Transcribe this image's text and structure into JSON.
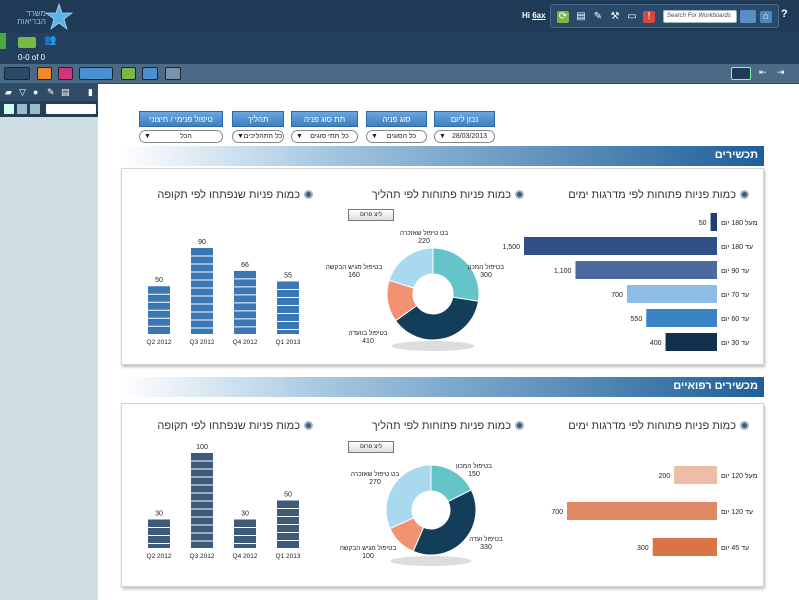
{
  "header": {
    "logo_line1": "משרד",
    "logo_line2": "הבריאות",
    "greeting": "Hi",
    "user": "6ax",
    "search_placeholder": "Search For Workboards",
    "help": "?"
  },
  "bar2": {
    "counter": "0-0 of 0"
  },
  "colors": {
    "blue_dark": "#1e3f6b",
    "blue_mid": "#4b6aa0",
    "blue_light": "#8dbde5",
    "blue_sky": "#3a84c6",
    "navy": "#12304f",
    "orange_light": "#efbda5",
    "orange": "#e08a65",
    "orange_dark": "#d97446",
    "teal": "#65c4c8",
    "pale_blue": "#a9d9ef",
    "salmon": "#f39273",
    "donut_navy": "#123e5c"
  },
  "filters": [
    {
      "label": "נכון ליום",
      "value": "28/03/2013"
    },
    {
      "label": "סוג פניה",
      "value": "כל הסוגים"
    },
    {
      "label": "תת סוג פניה",
      "value": "כל תתי סוגים"
    },
    {
      "label": "תהליך",
      "value": "כל התהליכים"
    },
    {
      "label": "טיפול פנימי / חיצוני",
      "value": "הכל"
    }
  ],
  "sections": [
    {
      "title": "תכשירים",
      "bar_title": "כמות פניות פתוחות לפי מדרגות ימים",
      "donut_title": "כמות פניות פתוחות לפי תהליך",
      "column_title": "כמות פניות שנפתחו לפי תקופה",
      "legend_label": "ליצ פרוס"
    },
    {
      "title": "מכשירים רפואיים",
      "bar_title": "כמות פניות פתוחות לפי מדרגות ימים",
      "donut_title": "כמות פניות פתוחות לפי תהליך",
      "column_title": "כמות פניות שנפתחו לפי תקופה",
      "legend_label": "ליצ פרוס"
    }
  ],
  "chart_data": [
    {
      "type": "bar",
      "orientation": "horizontal",
      "categories": [
        "מעל 180 יום",
        "עד 180 יום",
        "עד 90 יום",
        "עד 70 יום",
        "עד 60 יום",
        "עד 30 יום"
      ],
      "values": [
        50,
        1500,
        1100,
        700,
        550,
        400
      ],
      "value_labels": [
        "50",
        "1,500",
        "1,100",
        "700",
        "550",
        "400"
      ],
      "colors": [
        "#1e3f6b",
        "#2f4f86",
        "#4b6aa0",
        "#8dbde5",
        "#3a84c6",
        "#12304f"
      ],
      "xlim": [
        0,
        1500
      ]
    },
    {
      "type": "pie",
      "donut": true,
      "labels": [
        "בטיפול מומחה",
        "בטיפול בוועדה",
        "בטיפול מגיש הבקשה",
        "בטיפול מנהל הבקשה"
      ],
      "labels_display": [
        "בטיפול המכון",
        "בטיפול בוועדה",
        "בטיפול מגיש הבקשה",
        "בט טיפול שאזכרה"
      ],
      "values": [
        300,
        410,
        160,
        220
      ],
      "colors": [
        "#65c4c8",
        "#123e5c",
        "#f39273",
        "#a9d9ef"
      ]
    },
    {
      "type": "bar",
      "categories": [
        "Q2 2012",
        "Q3 2012",
        "Q4 2012",
        "Q1 2013"
      ],
      "values": [
        50,
        90,
        66,
        55
      ],
      "ylim": [
        0,
        90
      ]
    },
    {
      "type": "bar",
      "orientation": "horizontal",
      "categories": [
        "מעל 120 יום",
        "עד 120 יום",
        "עד 45 יום"
      ],
      "values": [
        200,
        700,
        300
      ],
      "value_labels": [
        "200",
        "700",
        "300"
      ],
      "colors": [
        "#efbda5",
        "#e08a65",
        "#d97446"
      ],
      "xlim": [
        0,
        700
      ]
    },
    {
      "type": "pie",
      "donut": true,
      "labels_display": [
        "בטיפול המכון",
        "בטיפול ועדה",
        "בטיפול מגיש הבקשה",
        "בט טיפול שאזכרה"
      ],
      "values": [
        150,
        330,
        100,
        270
      ],
      "value_labels": [
        "150",
        "330",
        "100",
        "270"
      ],
      "colors": [
        "#65c4c8",
        "#123e5c",
        "#f39273",
        "#a9d9ef"
      ]
    },
    {
      "type": "bar",
      "categories": [
        "Q2 2012",
        "Q3 2012",
        "Q4 2012",
        "Q1 2013"
      ],
      "values": [
        30,
        100,
        30,
        50
      ],
      "ylim": [
        0,
        100
      ]
    }
  ]
}
